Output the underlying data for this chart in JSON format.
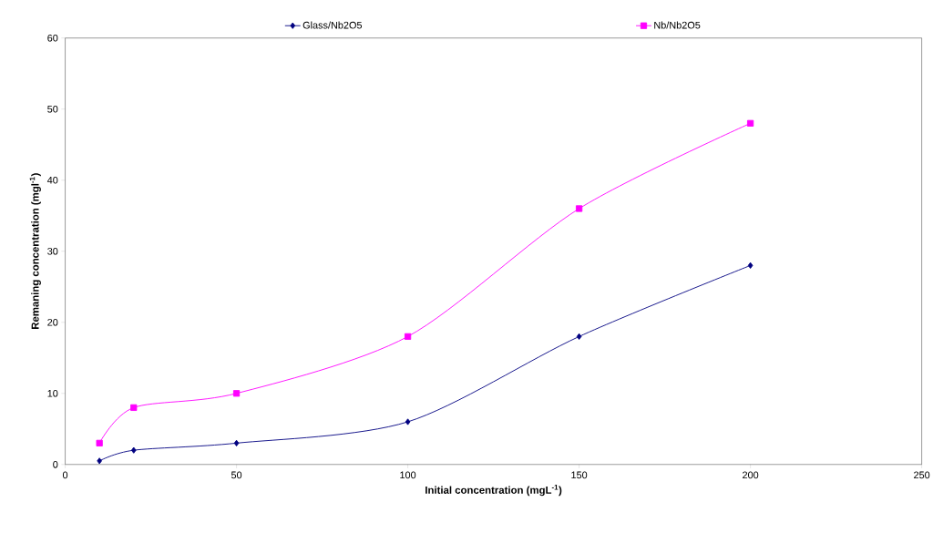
{
  "chart_data": {
    "type": "line",
    "xlabel": "Initial concentration (mgL$^{-1}$)",
    "ylabel": "Remaning concentration (mgl$^{-1}$)",
    "x": [
      10,
      20,
      50,
      100,
      150,
      200
    ],
    "series": [
      {
        "name": "Glass/Nb2O5",
        "color": "#000080",
        "marker": "diamond",
        "values": [
          0.5,
          2,
          3,
          6,
          18,
          28
        ]
      },
      {
        "name": "Nb/Nb2O5",
        "color": "#ff00ff",
        "marker": "square",
        "values": [
          3,
          8,
          10,
          18,
          36,
          48
        ]
      }
    ],
    "xlim": [
      0,
      250
    ],
    "xticks": [
      0,
      50,
      100,
      150,
      200,
      250
    ],
    "ylim": [
      0,
      60
    ],
    "yticks": [
      0,
      10,
      20,
      30,
      40,
      50,
      60
    ],
    "legend": "top",
    "grid": false,
    "line_style": "solid"
  }
}
